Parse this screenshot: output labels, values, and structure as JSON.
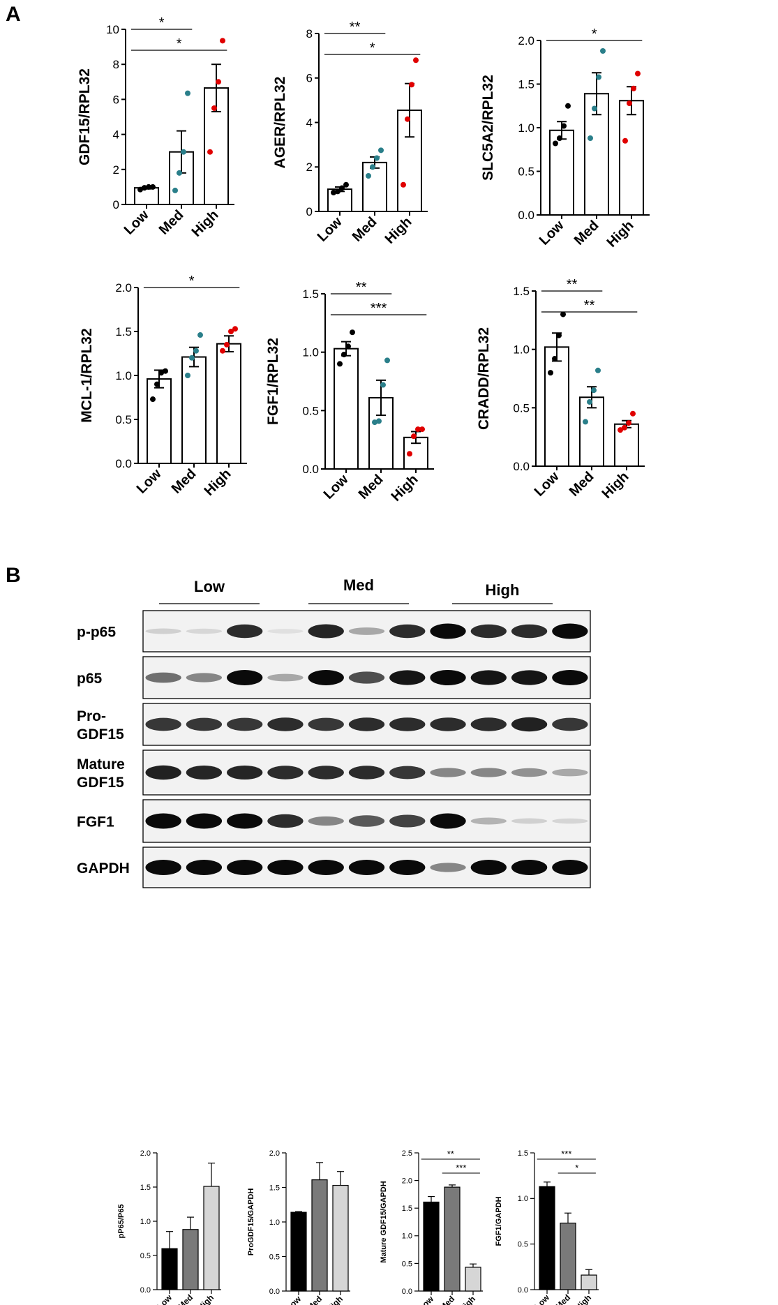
{
  "panels": {
    "a": "A",
    "b": "B"
  },
  "colors": {
    "low": "#000000",
    "med": "#2a7f8a",
    "high": "#e00000",
    "bar_low": "#000000",
    "bar_med": "#7a7a7a",
    "bar_high": "#d6d6d6"
  },
  "chart_data": [
    {
      "type": "bar",
      "panel": "A",
      "ylabel": "GDF15/RPL32",
      "categories": [
        "Low",
        "Med",
        "High"
      ],
      "values": [
        0.95,
        3.0,
        6.65
      ],
      "sem": [
        0.06,
        1.2,
        1.35
      ],
      "ylim": [
        0,
        10
      ],
      "yticks": [
        "0",
        "2",
        "4",
        "6",
        "8",
        "10"
      ],
      "points": [
        [
          0.85,
          0.95,
          1.0,
          1.0
        ],
        [
          0.8,
          1.8,
          3.0,
          6.35
        ],
        [
          3.0,
          5.5,
          7.0,
          9.35
        ]
      ],
      "sig": [
        {
          "from": 0,
          "to": 1,
          "label": "*"
        },
        {
          "from": 0,
          "to": 2,
          "label": "*"
        }
      ]
    },
    {
      "type": "bar",
      "panel": "A",
      "ylabel": "AGER/RPL32",
      "categories": [
        "Low",
        "Med",
        "High"
      ],
      "values": [
        1.0,
        2.2,
        4.55
      ],
      "sem": [
        0.1,
        0.25,
        1.2
      ],
      "ylim": [
        0,
        8
      ],
      "yticks": [
        "0",
        "2",
        "4",
        "6",
        "8"
      ],
      "points": [
        [
          0.85,
          0.9,
          1.05,
          1.2
        ],
        [
          1.6,
          2.0,
          2.4,
          2.75
        ],
        [
          1.2,
          4.15,
          5.7,
          6.8
        ]
      ],
      "sig": [
        {
          "from": 0,
          "to": 1,
          "label": "**"
        },
        {
          "from": 0,
          "to": 2,
          "label": "*"
        }
      ]
    },
    {
      "type": "bar",
      "panel": "A",
      "ylabel": "SLC5A2/RPL32",
      "categories": [
        "Low",
        "Med",
        "High"
      ],
      "values": [
        0.97,
        1.39,
        1.31
      ],
      "sem": [
        0.1,
        0.24,
        0.16
      ],
      "ylim": [
        0,
        2.0
      ],
      "yticks": [
        "0.0",
        "0.5",
        "1.0",
        "1.5",
        "2.0"
      ],
      "points": [
        [
          0.82,
          0.88,
          1.02,
          1.25
        ],
        [
          0.88,
          1.22,
          1.58,
          1.88
        ],
        [
          0.85,
          1.28,
          1.45,
          1.62
        ]
      ],
      "sig": [
        {
          "from": 0,
          "to": 2,
          "label": "*"
        }
      ]
    },
    {
      "type": "bar",
      "panel": "A",
      "ylabel": "MCL-1/RPL32",
      "categories": [
        "Low",
        "Med",
        "High"
      ],
      "values": [
        0.96,
        1.21,
        1.36
      ],
      "sem": [
        0.1,
        0.11,
        0.09
      ],
      "ylim": [
        0,
        2.0
      ],
      "yticks": [
        "0.0",
        "0.5",
        "1.0",
        "1.5",
        "2.0"
      ],
      "points": [
        [
          0.73,
          0.9,
          1.03,
          1.05
        ],
        [
          1.0,
          1.2,
          1.28,
          1.46
        ],
        [
          1.28,
          1.35,
          1.5,
          1.53
        ]
      ],
      "sig": [
        {
          "from": 0,
          "to": 2,
          "label": "*"
        }
      ]
    },
    {
      "type": "bar",
      "panel": "A",
      "ylabel": "FGF1/RPL32",
      "categories": [
        "Low",
        "Med",
        "High"
      ],
      "values": [
        1.03,
        0.61,
        0.27
      ],
      "sem": [
        0.06,
        0.15,
        0.05
      ],
      "ylim": [
        0,
        1.5
      ],
      "yticks": [
        "0.0",
        "0.5",
        "1.0",
        "1.5"
      ],
      "points": [
        [
          0.9,
          0.98,
          1.05,
          1.17
        ],
        [
          0.4,
          0.41,
          0.72,
          0.93
        ],
        [
          0.13,
          0.28,
          0.34,
          0.34
        ]
      ],
      "sig": [
        {
          "from": 0,
          "to": 1,
          "label": "**"
        },
        {
          "from": 0,
          "to": 2,
          "label": "***"
        }
      ]
    },
    {
      "type": "bar",
      "panel": "A",
      "ylabel": "CRADD/RPL32",
      "categories": [
        "Low",
        "Med",
        "High"
      ],
      "values": [
        1.02,
        0.59,
        0.36
      ],
      "sem": [
        0.12,
        0.09,
        0.03
      ],
      "ylim": [
        0,
        1.5
      ],
      "yticks": [
        "0.0",
        "0.5",
        "1.0",
        "1.5"
      ],
      "points": [
        [
          0.8,
          0.92,
          1.12,
          1.3
        ],
        [
          0.38,
          0.55,
          0.65,
          0.82
        ],
        [
          0.31,
          0.33,
          0.37,
          0.45
        ]
      ],
      "sig": [
        {
          "from": 0,
          "to": 1,
          "label": "**"
        },
        {
          "from": 0,
          "to": 2,
          "label": "**"
        }
      ]
    },
    {
      "type": "bar",
      "panel": "B",
      "ylabel": "pP65/P65",
      "categories": [
        "Low",
        "Med",
        "High"
      ],
      "values": [
        0.6,
        0.88,
        1.51
      ],
      "sem": [
        0.25,
        0.18,
        0.34
      ],
      "ylim": [
        0,
        2.0
      ],
      "yticks": [
        "0.0",
        "0.5",
        "1.0",
        "1.5",
        "2.0"
      ],
      "sig": []
    },
    {
      "type": "bar",
      "panel": "B",
      "ylabel": "ProGDF15/GAPDH",
      "categories": [
        "Low",
        "Med",
        "High"
      ],
      "values": [
        1.14,
        1.61,
        1.53
      ],
      "sem": [
        0.01,
        0.25,
        0.2
      ],
      "ylim": [
        0,
        2.0
      ],
      "yticks": [
        "0.0",
        "0.5",
        "1.0",
        "1.5",
        "2.0"
      ],
      "sig": []
    },
    {
      "type": "bar",
      "panel": "B",
      "ylabel": "Mature GDF15/GAPDH",
      "categories": [
        "Low",
        "Med",
        "High"
      ],
      "values": [
        1.61,
        1.88,
        0.43
      ],
      "sem": [
        0.1,
        0.04,
        0.06
      ],
      "ylim": [
        0,
        2.5
      ],
      "yticks": [
        "0.0",
        "0.5",
        "1.0",
        "1.5",
        "2.0",
        "2.5"
      ],
      "sig": [
        {
          "from": 0,
          "to": 2,
          "label": "**"
        },
        {
          "from": 1,
          "to": 2,
          "label": "***"
        }
      ]
    },
    {
      "type": "bar",
      "panel": "B",
      "ylabel": "FGF1/GAPDH",
      "categories": [
        "Low",
        "Med",
        "High"
      ],
      "values": [
        1.13,
        0.73,
        0.16
      ],
      "sem": [
        0.05,
        0.11,
        0.06
      ],
      "ylim": [
        0,
        1.5
      ],
      "yticks": [
        "0.0",
        "0.5",
        "1.0",
        "1.5"
      ],
      "sig": [
        {
          "from": 0,
          "to": 2,
          "label": "***"
        },
        {
          "from": 1,
          "to": 2,
          "label": "*"
        }
      ]
    }
  ],
  "western_blot": {
    "groups": [
      "Low",
      "Med",
      "High"
    ],
    "rows": [
      {
        "label": "p-p65",
        "intensity": [
          0.12,
          0.09,
          0.85,
          0.05,
          0.88,
          0.3,
          0.85,
          1.0,
          0.85,
          0.85,
          1.0
        ]
      },
      {
        "label": "p65",
        "intensity": [
          0.55,
          0.45,
          1.0,
          0.3,
          1.0,
          0.7,
          0.95,
          1.0,
          0.95,
          0.95,
          1.0
        ]
      },
      {
        "label": "Pro-\nGDF15",
        "intensity": [
          0.8,
          0.8,
          0.8,
          0.85,
          0.8,
          0.85,
          0.85,
          0.85,
          0.85,
          0.9,
          0.8
        ]
      },
      {
        "label": "Mature\nGDF15",
        "intensity": [
          0.9,
          0.88,
          0.88,
          0.85,
          0.85,
          0.85,
          0.8,
          0.45,
          0.45,
          0.4,
          0.3
        ]
      },
      {
        "label": "FGF1",
        "intensity": [
          1.0,
          1.0,
          1.0,
          0.85,
          0.45,
          0.65,
          0.75,
          1.0,
          0.25,
          0.12,
          0.1
        ]
      },
      {
        "label": "GAPDH",
        "intensity": [
          1.0,
          1.0,
          1.0,
          1.0,
          1.0,
          1.0,
          1.0,
          0.45,
          1.0,
          1.0,
          1.0
        ]
      }
    ]
  }
}
